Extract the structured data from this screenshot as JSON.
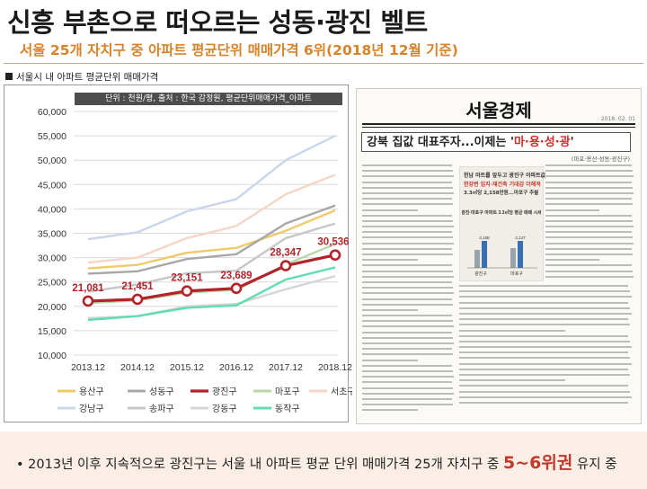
{
  "title": "신흥 부촌으로 떠오르는 성동·광진 벨트",
  "subtitle": "서울 25개 자치구 중 아파트 평균단위 매매가격 6위(2018년 12월 기준)",
  "section_label": "서울시 내 아파트 평균단위 매매가격",
  "unit_note": "단위 : 천원/평, 출처 : 한국 감정원, 평균단위매매가격_아파트",
  "chart_data": {
    "type": "line",
    "x": [
      "2013.12",
      "2014.12",
      "2015.12",
      "2016.12",
      "2017.12",
      "2018.12"
    ],
    "ylim": [
      10000,
      60000
    ],
    "yticks": [
      "60,000",
      "55,000",
      "50,000",
      "45,000",
      "40,000",
      "35,000",
      "30,000",
      "25,000",
      "20,000",
      "15,000",
      "10,000"
    ],
    "ytick_values": [
      60000,
      55000,
      50000,
      45000,
      40000,
      35000,
      30000,
      25000,
      20000,
      15000,
      10000
    ],
    "grid": true,
    "legend_position": "bottom",
    "series": [
      {
        "name": "용산구",
        "color": "#f0c96a",
        "values": [
          27800,
          28500,
          31000,
          32000,
          35500,
          39700
        ]
      },
      {
        "name": "성동구",
        "color": "#a8a8a8",
        "values": [
          26700,
          27200,
          29700,
          30700,
          37000,
          40700
        ]
      },
      {
        "name": "광진구",
        "color": "#b3232a",
        "values": [
          21081,
          21451,
          23151,
          23689,
          28347,
          30536
        ],
        "highlight": true,
        "labels": [
          "21,081",
          "21,451",
          "23,151",
          "23,689",
          "28,347",
          "30,536"
        ]
      },
      {
        "name": "마포구",
        "color": "#b9d8a8",
        "values": [
          20700,
          21200,
          22800,
          23400,
          28600,
          32800
        ]
      },
      {
        "name": "서초구",
        "color": "#f5d6c6",
        "values": [
          29000,
          30000,
          34000,
          36500,
          43000,
          47000
        ]
      },
      {
        "name": "강남구",
        "color": "#c8d6ec",
        "values": [
          33800,
          35200,
          39500,
          42000,
          50000,
          55000
        ]
      },
      {
        "name": "송파구",
        "color": "#c7c7c7",
        "values": [
          23000,
          24500,
          26800,
          27300,
          34000,
          37000
        ]
      },
      {
        "name": "강동구",
        "color": "#d5d5d5",
        "values": [
          17600,
          18000,
          20000,
          20500,
          23500,
          26200
        ]
      },
      {
        "name": "동작구",
        "color": "#5fdcb0",
        "values": [
          17200,
          18000,
          19700,
          20200,
          25500,
          28000
        ]
      }
    ]
  },
  "news": {
    "paper": "서울경제",
    "date": "2018. 02. 01",
    "headline_prefix": "강북 집값 대표주자...이제는 '",
    "headline_highlight": "마·용·성·광",
    "headline_suffix": "'",
    "subhead": "(마포·용산·성동·광진구)",
    "inset_line1": "한남 마트를 앞두고 광진구 아파트값",
    "inset_line2": "한강변 입지·재건축 기대감 더해져",
    "inset_line3": "3.3㎡당 2,158만원...마포구 추월",
    "inset_chart_title": "광진·마포구 아파트 3.3㎡당 평균 매매 시세",
    "inset_bar_labels": [
      "2,158",
      "2,147"
    ],
    "inset_cats": [
      "광진구",
      "마포구"
    ]
  },
  "footer": {
    "bullet": "•",
    "text": "2013년 이후 지속적으로 광진구는 서울 내 아파트 평균 단위 매매가격 25개 자치구 중",
    "emphasis": "5~6위권",
    "tail": "유지 중"
  }
}
